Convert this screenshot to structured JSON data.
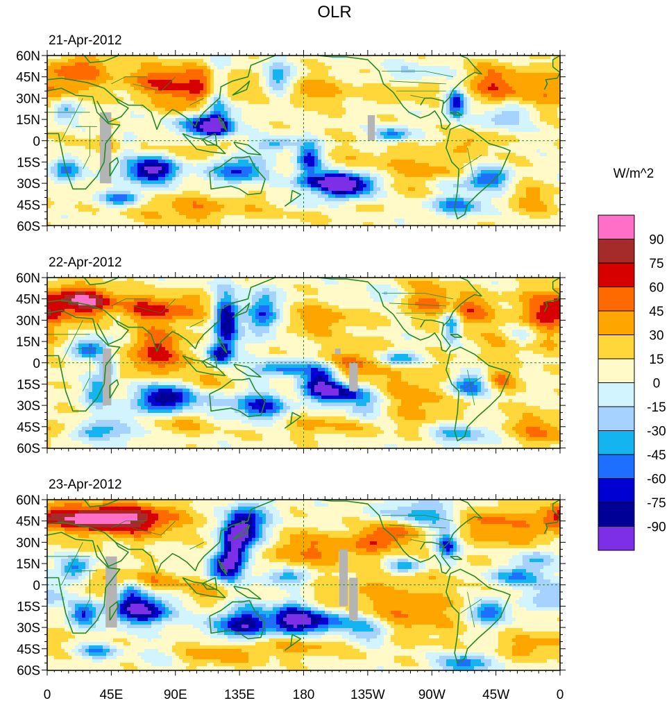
{
  "figure": {
    "title": "OLR",
    "colorbar_label": "W/m^2"
  },
  "panels": [
    {
      "date": "21-Apr-2012"
    },
    {
      "date": "22-Apr-2012"
    },
    {
      "date": "23-Apr-2012"
    }
  ],
  "axes": {
    "lat_labels": [
      "60N",
      "45N",
      "30N",
      "15N",
      "0",
      "15S",
      "30S",
      "45S",
      "60S"
    ],
    "lon_labels": [
      "0",
      "45E",
      "90E",
      "135E",
      "180",
      "135W",
      "90W",
      "45W",
      "0"
    ]
  },
  "colorbar": {
    "ticks": [
      "90",
      "75",
      "60",
      "45",
      "30",
      "15",
      "0",
      "-15",
      "-30",
      "-45",
      "-60",
      "-75",
      "-90"
    ],
    "colors": [
      "#ff6ec7",
      "#a52a2a",
      "#d70000",
      "#ff6a00",
      "#ffa500",
      "#ffd73a",
      "#fffac8",
      "#d2f4ff",
      "#a6d2ff",
      "#14b4f0",
      "#1e6fff",
      "#0000d2",
      "#000096",
      "#7d2fe8"
    ]
  },
  "chart_data": {
    "type": "heatmap",
    "title": "OLR",
    "units": "W/m^2",
    "levels": [
      -90,
      -75,
      -60,
      -45,
      -30,
      -15,
      0,
      15,
      30,
      45,
      60,
      75,
      90
    ],
    "lat_range": [
      -60,
      60
    ],
    "lon_range": [
      0,
      360
    ],
    "panels": [
      "21-Apr-2012",
      "22-Apr-2012",
      "23-Apr-2012"
    ]
  }
}
